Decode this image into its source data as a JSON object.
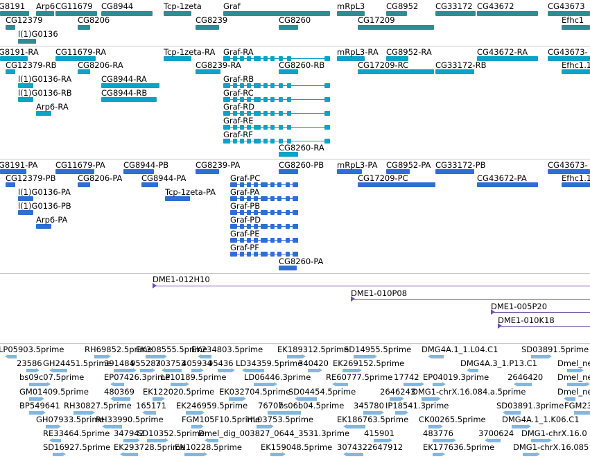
{
  "colors": {
    "gene": "#2e8d92",
    "transcript": "#0da2c8",
    "protein": "#2f6fd4",
    "clone": "#6c4ea8",
    "est": "#84b7df",
    "separator": "#c8c8c8"
  },
  "genes": [
    {
      "label": "G8191"
    },
    {
      "label": "Arp6"
    },
    {
      "label": "CG11679"
    },
    {
      "label": "CG8944"
    },
    {
      "label": "Tcp-1zeta"
    },
    {
      "label": "Graf"
    },
    {
      "label": "mRpL3"
    },
    {
      "label": "CG8952"
    },
    {
      "label": "CG33172"
    },
    {
      "label": "CG43672"
    },
    {
      "label": "CG43673"
    },
    {
      "label": "CG12379"
    },
    {
      "label": "CG8206"
    },
    {
      "label": "CG8239"
    },
    {
      "label": "CG8260"
    },
    {
      "label": "CG17209"
    },
    {
      "label": "Efhc1"
    },
    {
      "label": "l(1)G0136"
    }
  ],
  "transcripts": [
    {
      "label": "G8191-RA"
    },
    {
      "label": "CG11679-RA"
    },
    {
      "label": "Tcp-1zeta-RA"
    },
    {
      "label": "Graf-RA"
    },
    {
      "label": "mRpL3-RA"
    },
    {
      "label": "CG8952-RA"
    },
    {
      "label": "CG43672-RA"
    },
    {
      "label": "CG43673-"
    },
    {
      "label": "CG12379-RB"
    },
    {
      "label": "CG8206-RA"
    },
    {
      "label": "CG8239-RA"
    },
    {
      "label": "CG8260-RB"
    },
    {
      "label": "CG17209-RC"
    },
    {
      "label": "CG33172-RB"
    },
    {
      "label": "Efhc1.1"
    },
    {
      "label": "l(1)G0136-RA"
    },
    {
      "label": "CG8944-RA"
    },
    {
      "label": "Graf-RB"
    },
    {
      "label": "l(1)G0136-RB"
    },
    {
      "label": "CG8944-RB"
    },
    {
      "label": "Graf-RC"
    },
    {
      "label": "Arp6-RA"
    },
    {
      "label": "Graf-RD"
    },
    {
      "label": "Graf-RE"
    },
    {
      "label": "Graf-RF"
    },
    {
      "label": "CG8260-RA"
    }
  ],
  "proteins": [
    {
      "label": "G8191-PA"
    },
    {
      "label": "CG11679-PA"
    },
    {
      "label": "CG8944-PB"
    },
    {
      "label": "CG8239-PA"
    },
    {
      "label": "CG8260-PB"
    },
    {
      "label": "mRpL3-PA"
    },
    {
      "label": "CG8952-PA"
    },
    {
      "label": "CG33172-PB"
    },
    {
      "label": "CG43673-"
    },
    {
      "label": "CG12379-PB"
    },
    {
      "label": "CG8206-PA"
    },
    {
      "label": "CG8944-PA"
    },
    {
      "label": "Graf-PC"
    },
    {
      "label": "CG17209-PC"
    },
    {
      "label": "CG43672-PA"
    },
    {
      "label": "Efhc1.1"
    },
    {
      "label": "l(1)G0136-PA"
    },
    {
      "label": "Tcp-1zeta-PA"
    },
    {
      "label": "Graf-PA"
    },
    {
      "label": "l(1)G0136-PB"
    },
    {
      "label": "Graf-PB"
    },
    {
      "label": "Arp6-PA"
    },
    {
      "label": "Graf-PD"
    },
    {
      "label": "Graf-PE"
    },
    {
      "label": "Graf-PF"
    },
    {
      "label": "CG8260-PA"
    }
  ],
  "clones": [
    {
      "label": "DME1-012H10"
    },
    {
      "label": "DME1-010P08"
    },
    {
      "label": "DME1-005P20"
    },
    {
      "label": "DME1-010K18"
    }
  ],
  "ests": [
    "LP05903.5prime",
    "RH69852.5prime",
    "EK308555.5prime",
    "EK234803.5prime",
    "EK189312.5prime",
    "SD14955.5prime",
    "DMG4A.1_1.L04.C1",
    "SD03891.5prime",
    "23586",
    "GH24451.5prime",
    "391484",
    "955283",
    "703753",
    "405934",
    "95436",
    "LD34359.5prime",
    "340420",
    "EK269152.5prime",
    "DMG4A.3_1.P13.C1",
    "Dmel_ne",
    "bs09c07.5prime",
    "EP07426.3prime",
    "LP10189.5prime",
    "LD06446.3prime",
    "RE60777.5prime",
    "17742",
    "EP04019.3prime",
    "2646420",
    "Dmel_ne",
    "GM01409.5prime",
    "480369",
    "EK122020.5prime",
    "EK032704.5prime",
    "SD04454.5prime",
    "2646243",
    "DMG1-chrX.16.084.a.5prime",
    "Dmel_ne",
    "BP549641",
    "RH30827.5prime",
    "165171",
    "EK246959.5prime",
    "76707",
    "bs06b04.5prime",
    "345780",
    "IP18541.3prime",
    "SD03891.3prime",
    "FGM23",
    "GH07933.5prime",
    "RH33990.5prime",
    "FGM105F10.5prime",
    "HL03753.5prime",
    "EK186763.5prime",
    "CK00265.5prime",
    "DMG4A.1_1.K06.C1",
    "RE33464.5prime",
    "347942",
    "SD10352.5prime",
    "Dmel_dig_003827_0644_3531.3prime",
    "415901",
    "483776",
    "3700624",
    "DMG1-chrX.16.0",
    "SD16927.5prime",
    "EK293728.5prime",
    "EN10228.5prime",
    "EK159048.5prime",
    "3074322647912",
    "EK177636.5prime",
    "DMG1-chrX.16.085"
  ]
}
